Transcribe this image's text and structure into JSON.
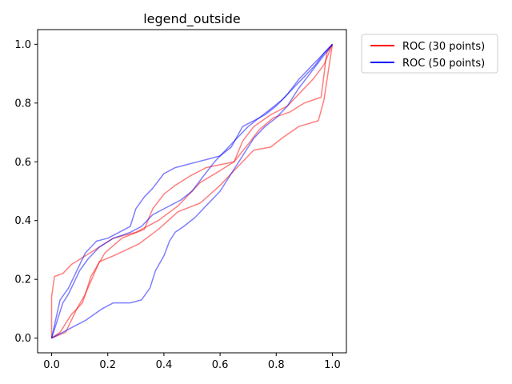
{
  "chart_data": {
    "type": "line",
    "title": "legend_outside",
    "xlabel": "",
    "ylabel": "",
    "xlim": [
      -0.05,
      1.05
    ],
    "ylim": [
      -0.05,
      1.05
    ],
    "xticks": [
      0.0,
      0.2,
      0.4,
      0.6,
      0.8,
      1.0
    ],
    "yticks": [
      0.0,
      0.2,
      0.4,
      0.6,
      0.8,
      1.0
    ],
    "xtick_labels": [
      "0.0",
      "0.2",
      "0.4",
      "0.6",
      "0.8",
      "1.0"
    ],
    "ytick_labels": [
      "0.0",
      "0.2",
      "0.4",
      "0.6",
      "0.8",
      "1.0"
    ],
    "grid": false,
    "legend_position": "outside-top-right",
    "legend": [
      {
        "label": "ROC (30 points)",
        "color": "#ff0000"
      },
      {
        "label": "ROC (50 points)",
        "color": "#0000ff"
      }
    ],
    "series": [
      {
        "group": "ROC (30 points)",
        "color": "#ff0000",
        "alpha": 0.5,
        "x": [
          0.0,
          0.0,
          0.01,
          0.04,
          0.07,
          0.12,
          0.17,
          0.22,
          0.3,
          0.38,
          0.45,
          0.53,
          0.6,
          0.65,
          0.68,
          0.72,
          0.78,
          0.84,
          0.88,
          0.93,
          0.97,
          1.0
        ],
        "y": [
          0.0,
          0.14,
          0.21,
          0.22,
          0.25,
          0.28,
          0.31,
          0.34,
          0.36,
          0.4,
          0.45,
          0.53,
          0.57,
          0.6,
          0.67,
          0.72,
          0.76,
          0.79,
          0.83,
          0.88,
          0.93,
          1.0
        ]
      },
      {
        "group": "ROC (30 points)",
        "color": "#ff0000",
        "alpha": 0.5,
        "x": [
          0.0,
          0.03,
          0.07,
          0.11,
          0.14,
          0.19,
          0.25,
          0.33,
          0.36,
          0.4,
          0.44,
          0.49,
          0.55,
          0.6,
          0.65,
          0.7,
          0.74,
          0.79,
          0.85,
          0.9,
          0.96,
          0.98,
          1.0
        ],
        "y": [
          0.0,
          0.02,
          0.08,
          0.12,
          0.21,
          0.29,
          0.34,
          0.37,
          0.44,
          0.49,
          0.52,
          0.55,
          0.58,
          0.59,
          0.6,
          0.66,
          0.71,
          0.75,
          0.77,
          0.8,
          0.82,
          0.97,
          1.0
        ]
      },
      {
        "group": "ROC (30 points)",
        "color": "#ff0000",
        "alpha": 0.5,
        "x": [
          0.0,
          0.05,
          0.09,
          0.12,
          0.17,
          0.22,
          0.31,
          0.38,
          0.45,
          0.53,
          0.6,
          0.66,
          0.72,
          0.78,
          0.82,
          0.88,
          0.95,
          0.97,
          1.0
        ],
        "y": [
          0.0,
          0.02,
          0.1,
          0.15,
          0.26,
          0.28,
          0.32,
          0.37,
          0.43,
          0.46,
          0.52,
          0.58,
          0.64,
          0.65,
          0.68,
          0.72,
          0.74,
          0.81,
          1.0
        ]
      },
      {
        "group": "ROC (50 points)",
        "color": "#0000ff",
        "alpha": 0.5,
        "x": [
          0.0,
          0.02,
          0.04,
          0.06,
          0.08,
          0.1,
          0.13,
          0.17,
          0.22,
          0.28,
          0.32,
          0.34,
          0.36,
          0.4,
          0.46,
          0.5,
          0.54,
          0.58,
          0.62,
          0.66,
          0.7,
          0.74,
          0.78,
          0.82,
          0.86,
          0.9,
          0.94,
          0.97,
          1.0
        ],
        "y": [
          0.0,
          0.06,
          0.12,
          0.15,
          0.19,
          0.23,
          0.27,
          0.31,
          0.34,
          0.36,
          0.38,
          0.4,
          0.42,
          0.44,
          0.47,
          0.5,
          0.55,
          0.6,
          0.64,
          0.68,
          0.72,
          0.75,
          0.78,
          0.81,
          0.85,
          0.89,
          0.93,
          0.97,
          1.0
        ]
      },
      {
        "group": "ROC (50 points)",
        "color": "#0000ff",
        "alpha": 0.5,
        "x": [
          0.0,
          0.03,
          0.06,
          0.09,
          0.12,
          0.16,
          0.2,
          0.24,
          0.28,
          0.3,
          0.33,
          0.36,
          0.4,
          0.44,
          0.48,
          0.52,
          0.56,
          0.6,
          0.64,
          0.68,
          0.72,
          0.76,
          0.8,
          0.84,
          0.88,
          0.92,
          0.96,
          1.0
        ],
        "y": [
          0.0,
          0.13,
          0.17,
          0.23,
          0.29,
          0.33,
          0.34,
          0.36,
          0.38,
          0.44,
          0.48,
          0.51,
          0.56,
          0.58,
          0.59,
          0.6,
          0.61,
          0.62,
          0.65,
          0.72,
          0.74,
          0.76,
          0.79,
          0.83,
          0.88,
          0.92,
          0.96,
          1.0
        ]
      },
      {
        "group": "ROC (50 points)",
        "color": "#0000ff",
        "alpha": 0.5,
        "x": [
          0.0,
          0.04,
          0.08,
          0.12,
          0.15,
          0.18,
          0.22,
          0.28,
          0.32,
          0.35,
          0.37,
          0.4,
          0.42,
          0.44,
          0.47,
          0.51,
          0.55,
          0.6,
          0.64,
          0.68,
          0.72,
          0.76,
          0.8,
          0.84,
          0.88,
          0.92,
          0.96,
          1.0
        ],
        "y": [
          0.0,
          0.02,
          0.04,
          0.06,
          0.08,
          0.1,
          0.12,
          0.12,
          0.13,
          0.17,
          0.23,
          0.28,
          0.33,
          0.36,
          0.38,
          0.41,
          0.45,
          0.5,
          0.56,
          0.62,
          0.68,
          0.72,
          0.75,
          0.79,
          0.85,
          0.9,
          0.95,
          1.0
        ]
      }
    ]
  }
}
